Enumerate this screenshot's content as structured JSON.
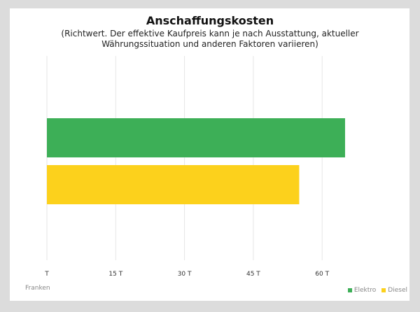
{
  "chart_data": {
    "type": "bar",
    "orientation": "horizontal",
    "title": "Anschaffungskosten",
    "subtitle": "(Richtwert. Der effektive Kaufpreis kann je nach Ausstattung, aktueller Währungssituation und anderen Faktoren variieren)",
    "xlabel": "Franken",
    "xlim": [
      0,
      70
    ],
    "xticks": [
      0,
      15,
      30,
      45,
      60
    ],
    "xtick_labels": [
      "T",
      "15 T",
      "30 T",
      "45 T",
      "60 T"
    ],
    "grid": true,
    "legend_position": "bottom-right",
    "series": [
      {
        "name": "Elektro",
        "values": [
          65
        ],
        "color": "#3daf57"
      },
      {
        "name": "Diesel",
        "values": [
          55
        ],
        "color": "#fcd11c"
      }
    ]
  }
}
